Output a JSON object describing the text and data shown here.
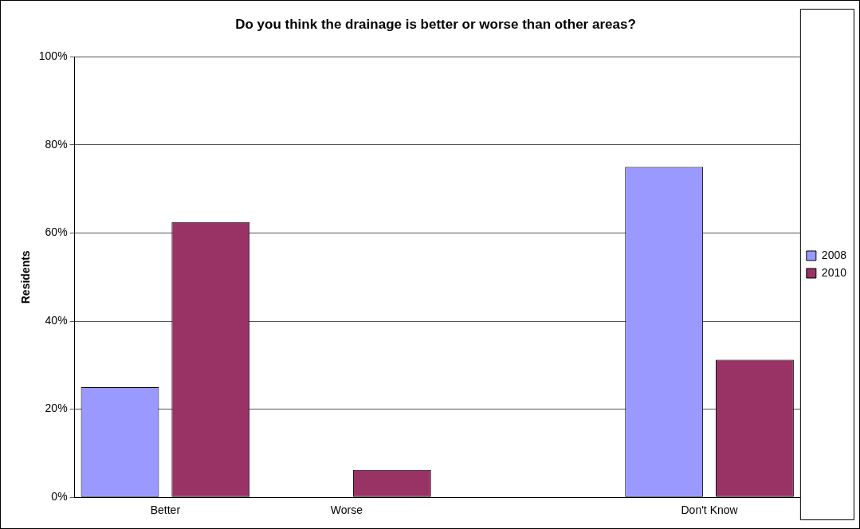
{
  "chart_data": {
    "type": "bar",
    "title": "Do you think the drainage is better or worse than other areas?",
    "ylabel": "Residents",
    "categories": [
      "Better",
      "Worse",
      null,
      "Don't Know"
    ],
    "series": [
      {
        "name": "2008",
        "color": "#9999ff",
        "values": [
          25,
          0,
          null,
          75
        ]
      },
      {
        "name": "2010",
        "color": "#993366",
        "values": [
          62.5,
          6.25,
          null,
          31.25
        ]
      }
    ],
    "ylim": [
      0,
      100
    ],
    "yticks": [
      {
        "value": 0,
        "label": "0%"
      },
      {
        "value": 20,
        "label": "20%"
      },
      {
        "value": 40,
        "label": "40%"
      },
      {
        "value": 60,
        "label": "60%"
      },
      {
        "value": 80,
        "label": "80%"
      },
      {
        "value": 100,
        "label": "100%"
      }
    ],
    "grid": "y",
    "legend": "right"
  }
}
